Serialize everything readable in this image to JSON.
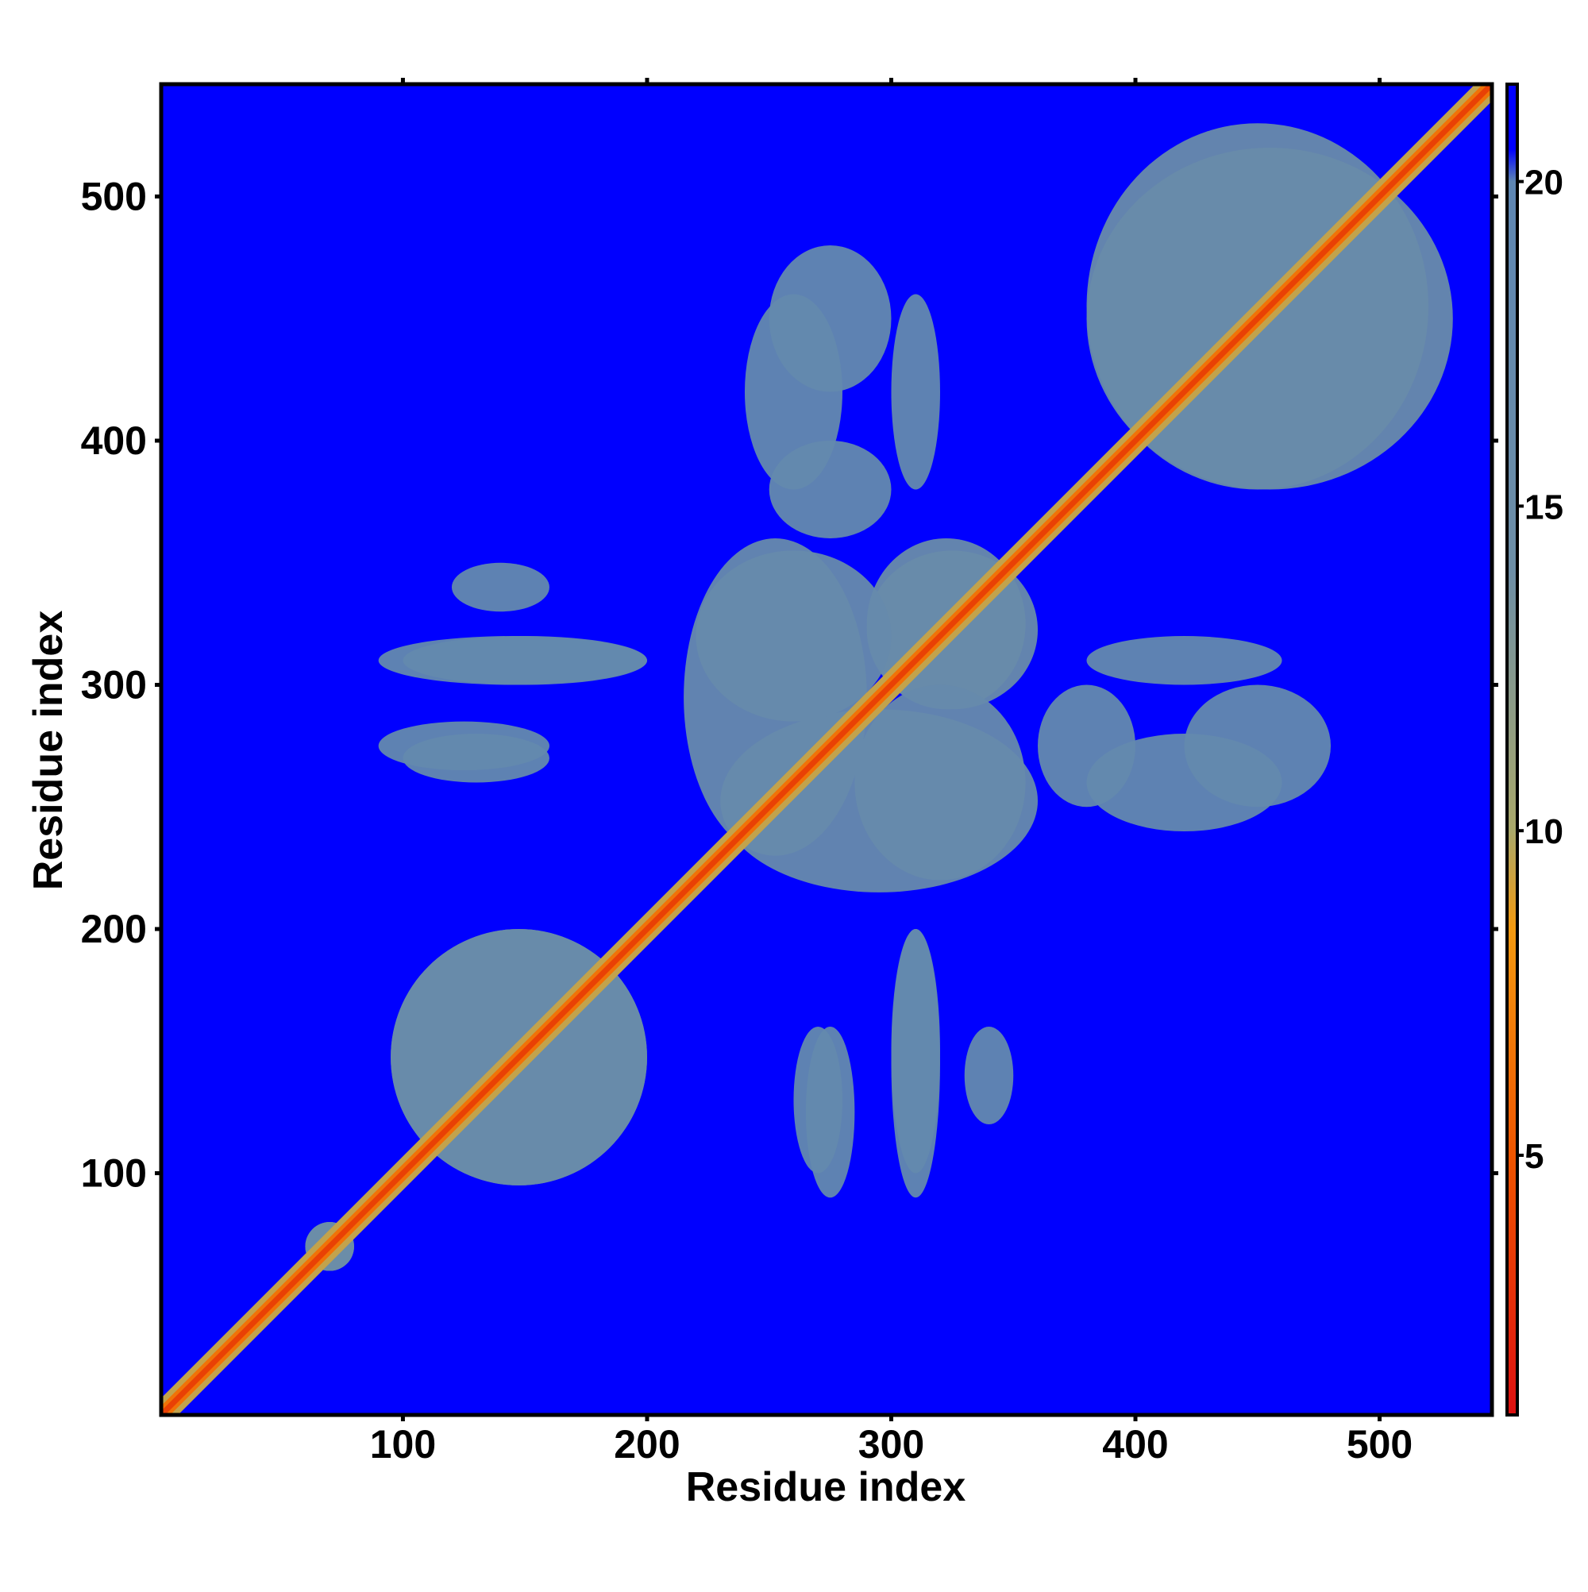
{
  "chart_data": {
    "type": "heatmap",
    "title": "",
    "xlabel": "Residue index",
    "ylabel": "Residue index",
    "xlim": [
      1,
      546
    ],
    "ylim": [
      1,
      546
    ],
    "x_ticks": [
      100,
      200,
      300,
      400,
      500
    ],
    "y_ticks": [
      100,
      200,
      300,
      400,
      500
    ],
    "x_tick_labels": [
      "100",
      "200",
      "300",
      "400",
      "500"
    ],
    "y_tick_labels": [
      "100",
      "200",
      "300",
      "400",
      "500"
    ],
    "grid": false,
    "colorbar": {
      "range": [
        1,
        21.5
      ],
      "ticks": [
        5,
        10,
        15,
        20
      ],
      "tick_labels": [
        "5",
        "10",
        "15",
        "20"
      ],
      "colors": {
        "lowest": "#dd1111",
        "low": "#ee5500",
        "mid_low": "#f39a10",
        "mid": "#a9a86a",
        "mid_high": "#5e86b2",
        "high": "#0000ff"
      },
      "stops": [
        {
          "value": 1,
          "color": "#dd1111"
        },
        {
          "value": 5,
          "color": "#ee5500"
        },
        {
          "value": 8.5,
          "color": "#f39a10"
        },
        {
          "value": 10,
          "color": "#a9a86a"
        },
        {
          "value": 14,
          "color": "#6d8ea6"
        },
        {
          "value": 20,
          "color": "#5e86b2"
        },
        {
          "value": 20.5,
          "color": "#0000ff"
        },
        {
          "value": 21.5,
          "color": "#0000ff"
        }
      ]
    },
    "background_value": 21.5,
    "diagonal": {
      "from": 1,
      "to": 546,
      "distance": 3.8
    },
    "contact_regions": [
      {
        "x": [
          95,
          200
        ],
        "y": [
          95,
          200
        ],
        "distance": 16
      },
      {
        "x": [
          60,
          80
        ],
        "y": [
          60,
          80
        ],
        "distance": 15
      },
      {
        "x": [
          3,
          10
        ],
        "y": [
          3,
          10
        ],
        "distance": 12
      },
      {
        "x": [
          215,
          290
        ],
        "y": [
          230,
          360
        ],
        "distance": 17
      },
      {
        "x": [
          290,
          355
        ],
        "y": [
          290,
          360
        ],
        "distance": 16
      },
      {
        "x": [
          285,
          355
        ],
        "y": [
          220,
          300
        ],
        "distance": 17
      },
      {
        "x": [
          380,
          520
        ],
        "y": [
          380,
          530
        ],
        "distance": 16
      },
      {
        "x": [
          90,
          200
        ],
        "y": [
          300,
          320
        ],
        "distance": 18
      },
      {
        "x": [
          90,
          160
        ],
        "y": [
          265,
          285
        ],
        "distance": 18
      },
      {
        "x": [
          260,
          280
        ],
        "y": [
          100,
          160
        ],
        "distance": 18
      },
      {
        "x": [
          300,
          320
        ],
        "y": [
          100,
          200
        ],
        "distance": 18
      },
      {
        "x": [
          330,
          350
        ],
        "y": [
          120,
          160
        ],
        "distance": 18
      },
      {
        "x": [
          240,
          280
        ],
        "y": [
          380,
          460
        ],
        "distance": 18
      },
      {
        "x": [
          300,
          320
        ],
        "y": [
          380,
          460
        ],
        "distance": 18
      },
      {
        "x": [
          360,
          400
        ],
        "y": [
          250,
          300
        ],
        "distance": 18
      },
      {
        "x": [
          420,
          480
        ],
        "y": [
          250,
          300
        ],
        "distance": 18
      }
    ]
  }
}
